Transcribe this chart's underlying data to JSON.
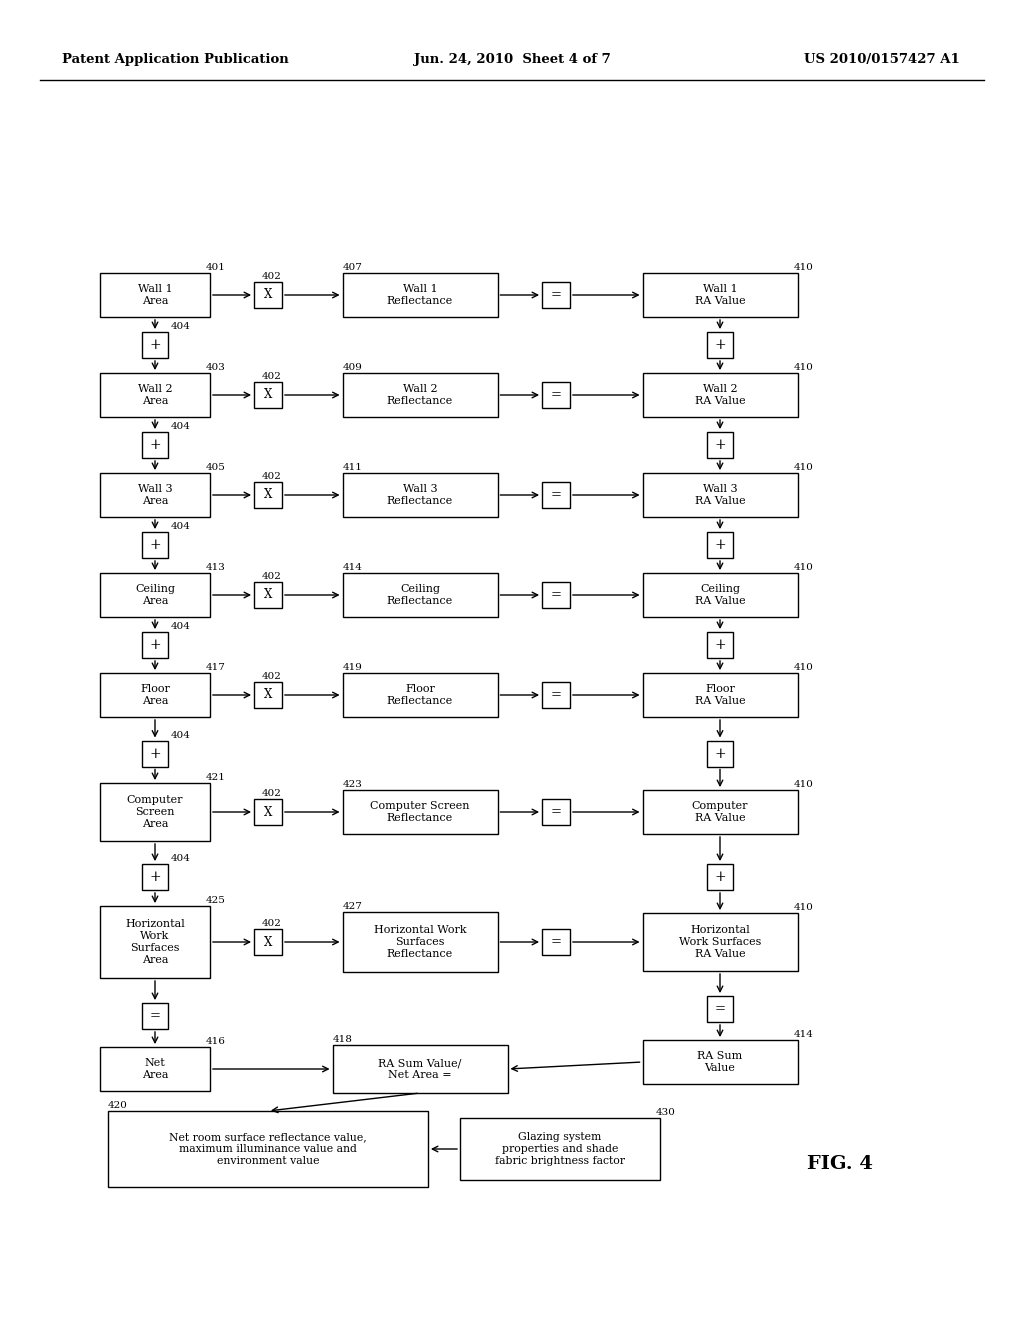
{
  "header_left": "Patent Application Publication",
  "header_center": "Jun. 24, 2010  Sheet 4 of 7",
  "header_right": "US 2010/0157427 A1",
  "fig_label": "FIG. 4",
  "bg_color": "#ffffff",
  "rows": [
    {
      "area_label": "Wall 1\nArea",
      "area_num": "401",
      "mult_num": "402",
      "reflectance_label": "Wall 1\nReflectance",
      "reflectance_num": "407",
      "ra_label": "Wall 1\nRA Value",
      "ra_num": "410"
    },
    {
      "area_label": "Wall 2\nArea",
      "area_num": "403",
      "mult_num": "402",
      "reflectance_label": "Wall 2\nReflectance",
      "reflectance_num": "409",
      "ra_label": "Wall 2\nRA Value",
      "ra_num": "410"
    },
    {
      "area_label": "Wall 3\nArea",
      "area_num": "405",
      "mult_num": "402",
      "reflectance_label": "Wall 3\nReflectance",
      "reflectance_num": "411",
      "ra_label": "Wall 3\nRA Value",
      "ra_num": "410"
    },
    {
      "area_label": "Ceiling\nArea",
      "area_num": "413",
      "mult_num": "402",
      "reflectance_label": "Ceiling\nReflectance",
      "reflectance_num": "414",
      "ra_label": "Ceiling\nRA Value",
      "ra_num": "410"
    },
    {
      "area_label": "Floor\nArea",
      "area_num": "417",
      "mult_num": "402",
      "reflectance_label": "Floor\nReflectance",
      "reflectance_num": "419",
      "ra_label": "Floor\nRA Value",
      "ra_num": "410"
    },
    {
      "area_label": "Computer\nScreen\nArea",
      "area_num": "421",
      "mult_num": "402",
      "reflectance_label": "Computer Screen\nReflectance",
      "reflectance_num": "423",
      "ra_label": "Computer\nRA Value",
      "ra_num": "410"
    },
    {
      "area_label": "Horizontal\nWork\nSurfaces\nArea",
      "area_num": "425",
      "mult_num": "402",
      "reflectance_label": "Horizontal Work\nSurfaces\nReflectance",
      "reflectance_num": "427",
      "ra_label": "Horizontal\nWork Surfaces\nRA Value",
      "ra_num": "410"
    }
  ],
  "plus_num": "404",
  "net_area_label": "Net\nArea",
  "net_area_num": "416",
  "eq_bottom_label": "RA Sum Value/\nNet Area =",
  "eq_bottom_num": "418",
  "ra_sum_label": "RA Sum\nValue",
  "ra_sum_num": "414",
  "output_box1_label": "Net room surface reflectance value,\nmaximum illuminance value and\nenvironment value",
  "output_box1_num": "420",
  "output_box2_label": "Glazing system\nproperties and shade\nfabric brightness factor",
  "output_box2_num": "430"
}
